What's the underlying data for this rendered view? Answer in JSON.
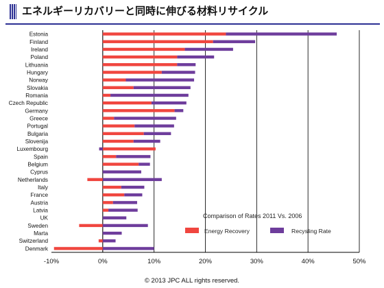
{
  "page": {
    "title": "エネルギーリカバリーと同時に伸びる材料リサイクル",
    "copyright": "© 2013 JPC ALL rights reserved."
  },
  "colors": {
    "energy": "#f0463f",
    "recycling": "#6e3d9c",
    "accent": "#2b2f93"
  },
  "chart_data": {
    "type": "bar",
    "orientation": "horizontal",
    "stacked": true,
    "title": "Comparison of Rates 2011 Vs. 2006",
    "xlabel": "",
    "ylabel": "",
    "xlim": [
      -10,
      50
    ],
    "xticks": [
      -10,
      0,
      10,
      20,
      30,
      40,
      50
    ],
    "xtick_labels": [
      "-10%",
      "0%",
      "10%",
      "20%",
      "30%",
      "40%",
      "50%"
    ],
    "grid": "vertical lines at 10% steps",
    "legend": "bottom-right",
    "categories": [
      "Estonia",
      "Finland",
      "Ireland",
      "Poland",
      "Lithuania",
      "Hungary",
      "Norway",
      "Slovakia",
      "Romania",
      "Czech Republic",
      "Germany",
      "Greece",
      "Portugal",
      "Bulgaria",
      "Slovenija",
      "Luxembourg",
      "Spain",
      "Belgium",
      "Cyprus",
      "Netherlands",
      "Italy",
      "France",
      "Austria",
      "Latvia",
      "UK",
      "Sweden",
      "Marta",
      "Switzerland",
      "Denmark"
    ],
    "series": [
      {
        "name": "Energy Recovery",
        "values": [
          24,
          21.5,
          16,
          14.5,
          14.5,
          11.5,
          4.5,
          6,
          1.5,
          9.5,
          14,
          2.2,
          6.2,
          8,
          6,
          10.3,
          2.6,
          7,
          0,
          -3,
          3.6,
          4.2,
          2,
          1.1,
          0,
          -4.6,
          0,
          -0.8,
          -9.5
        ]
      },
      {
        "name": "Recysling Rate",
        "values": [
          21.6,
          8.2,
          9.4,
          7.2,
          3.6,
          6.5,
          13.3,
          11.1,
          15.2,
          6.8,
          1.7,
          12.1,
          7.7,
          5.3,
          5.2,
          -0.7,
          6.7,
          2.2,
          7.5,
          11.5,
          4.5,
          3.5,
          4.7,
          5.7,
          4.6,
          8.8,
          3.7,
          2.5,
          10
        ]
      }
    ]
  }
}
